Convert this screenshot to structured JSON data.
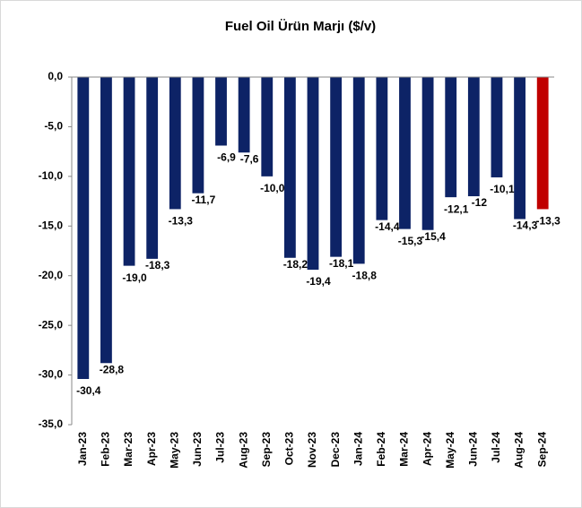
{
  "chart_data": {
    "type": "bar",
    "title": "Fuel Oil Ürün Marjı ($/v)",
    "categories": [
      "Jan-23",
      "Feb-23",
      "Mar-23",
      "Apr-23",
      "May-23",
      "Jun-23",
      "Jul-23",
      "Aug-23",
      "Sep-23",
      "Oct-23",
      "Nov-23",
      "Dec-23",
      "Jan-24",
      "Feb-24",
      "Mar-24",
      "Apr-24",
      "May-24",
      "Jun-24",
      "Jul-24",
      "Aug-24",
      "Sep-24"
    ],
    "values": [
      -30.4,
      -28.8,
      -19.0,
      -18.3,
      -13.3,
      -11.7,
      -6.9,
      -7.6,
      -10.0,
      -18.2,
      -19.4,
      -18.1,
      -18.8,
      -14.4,
      -15.3,
      -15.4,
      -12.1,
      -12,
      -10.1,
      -14.3,
      -13.3
    ],
    "value_labels": [
      "-30,4",
      "-28,8",
      "-19,0",
      "-18,3",
      "-13,3",
      "-11,7",
      "-6,9",
      "-7,6",
      "-10,0",
      "-18,2",
      "-19,4",
      "-18,1",
      "-18,8",
      "-14,4",
      "-15,3",
      "-15,4",
      "-12,1",
      "-12",
      "-10,1",
      "-14,3",
      "-13,3"
    ],
    "colors": [
      "#0d2366",
      "#0d2366",
      "#0d2366",
      "#0d2366",
      "#0d2366",
      "#0d2366",
      "#0d2366",
      "#0d2366",
      "#0d2366",
      "#0d2366",
      "#0d2366",
      "#0d2366",
      "#0d2366",
      "#0d2366",
      "#0d2366",
      "#0d2366",
      "#0d2366",
      "#0d2366",
      "#0d2366",
      "#0d2366",
      "#c00000"
    ],
    "ylim": [
      -35,
      0
    ],
    "yticks": [
      {
        "value": 0,
        "label": "0,0"
      },
      {
        "value": -5,
        "label": "-5,0"
      },
      {
        "value": -10,
        "label": "-10,0"
      },
      {
        "value": -15,
        "label": "-15,0"
      },
      {
        "value": -20,
        "label": "-20,0"
      },
      {
        "value": -25,
        "label": "-25,0"
      },
      {
        "value": -30,
        "label": "-30,0"
      },
      {
        "value": -35,
        "label": "-35,0"
      }
    ],
    "grid": false
  }
}
